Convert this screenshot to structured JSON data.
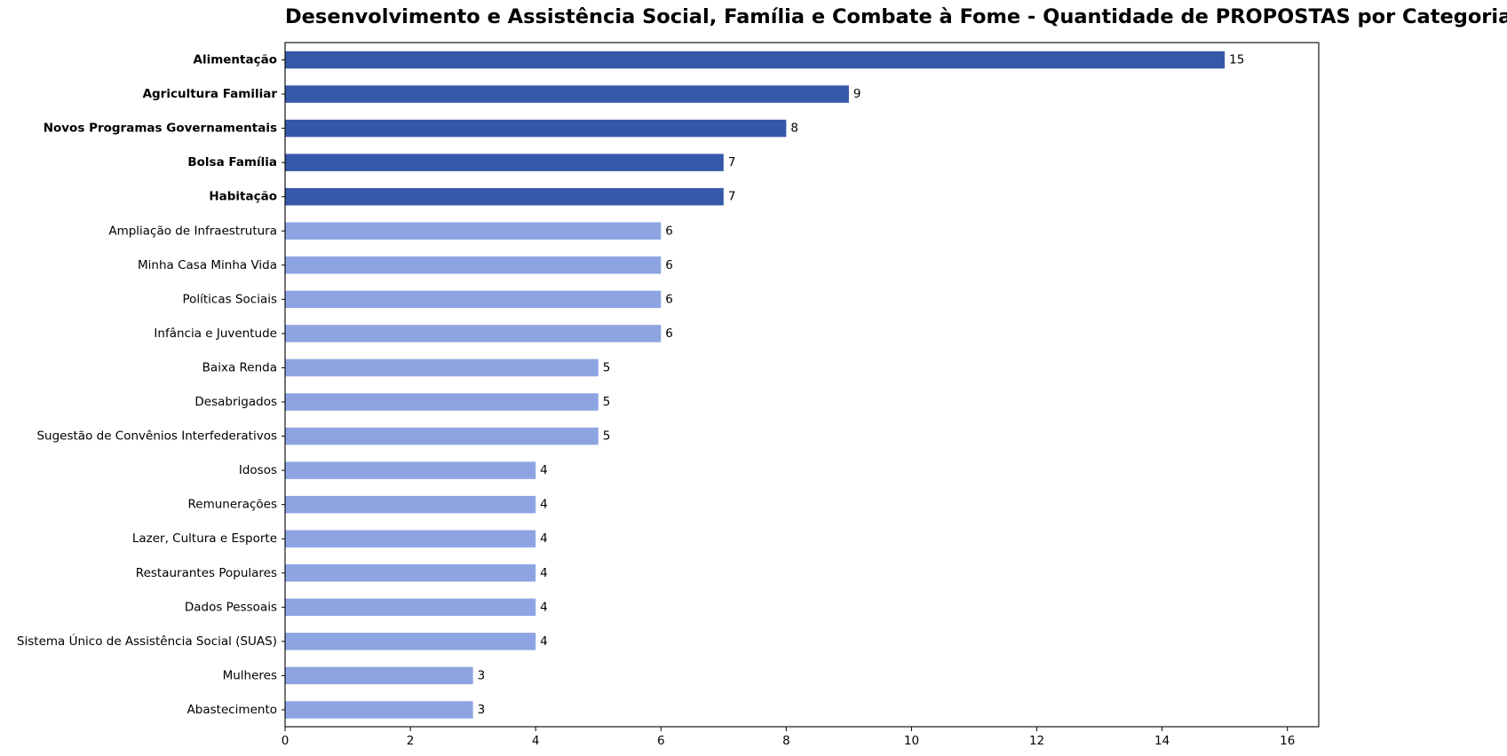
{
  "chart_data": {
    "type": "bar",
    "orientation": "horizontal",
    "title": "Desenvolvimento e Assistência Social, Família e Combate à Fome - Quantidade de PROPOSTAS por Categoria",
    "xlabel": "",
    "ylabel": "",
    "xlim": [
      0,
      16.5
    ],
    "xticks": [
      "0",
      "2",
      "4",
      "6",
      "8",
      "10",
      "12",
      "14",
      "16"
    ],
    "grid": false,
    "colors": {
      "highlight": "#3658a8",
      "normal": "#8ea4e2"
    },
    "categories": [
      "Alimentação",
      "Agricultura Familiar",
      "Novos Programas Governamentais",
      "Bolsa Família",
      "Habitação",
      "Ampliação de Infraestrutura",
      "Minha Casa Minha Vida",
      "Políticas Sociais",
      "Infância e Juventude",
      "Baixa Renda",
      "Desabrigados",
      "Sugestão de Convênios Interfederativos",
      "Idosos",
      "Remunerações",
      "Lazer, Cultura e Esporte",
      "Restaurantes Populares",
      "Dados Pessoais",
      "Sistema Único de Assistência Social (SUAS)",
      "Mulheres",
      "Abastecimento"
    ],
    "values": [
      15,
      9,
      8,
      7,
      7,
      6,
      6,
      6,
      6,
      5,
      5,
      5,
      4,
      4,
      4,
      4,
      4,
      4,
      3,
      3
    ],
    "highlighted": [
      true,
      true,
      true,
      true,
      true,
      false,
      false,
      false,
      false,
      false,
      false,
      false,
      false,
      false,
      false,
      false,
      false,
      false,
      false,
      false
    ]
  }
}
